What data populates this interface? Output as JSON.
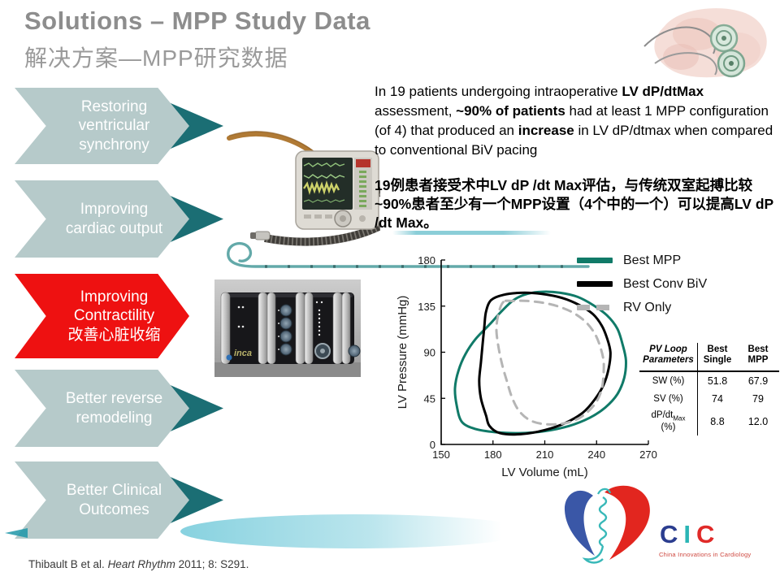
{
  "slide": {
    "title_en": "Solutions – MPP Study Data",
    "title_zh": "解决方案—MPP研究数据"
  },
  "pathway": {
    "colors": {
      "normal": "#b6caca",
      "highlight": "#ee1111",
      "tip": "#1b6e74",
      "text": "#ffffff"
    },
    "steps": [
      {
        "lines": [
          "Restoring",
          "ventricular",
          "synchrony"
        ],
        "highlighted": false
      },
      {
        "lines": [
          "Improving",
          "cardiac output"
        ],
        "highlighted": false
      },
      {
        "lines": [
          "Improving",
          "Contractility",
          "改善心脏收缩"
        ],
        "highlighted": true
      },
      {
        "lines": [
          "Better reverse",
          "remodeling"
        ],
        "highlighted": false
      },
      {
        "lines": [
          "Better Clinical",
          "Outcomes"
        ],
        "highlighted": false
      }
    ]
  },
  "study_text": {
    "en_segments": [
      {
        "text": "In 19 patients undergoing intraoperative ",
        "bold": false
      },
      {
        "text": "LV dP/dtMax",
        "bold": true
      },
      {
        "text": " assessment, ",
        "bold": false
      },
      {
        "text": "~90% of patients",
        "bold": true
      },
      {
        "text": " had at least 1 MPP configuration (of 4) that produced an ",
        "bold": false
      },
      {
        "text": "increase",
        "bold": true
      },
      {
        "text": " in LV dP/dtmax when compared to conventional BiV pacing",
        "bold": false
      }
    ],
    "zh": "19例患者接受术中LV dP /dt Max评估，与传统双室起搏比较~90%患者至少有一个MPP设置（4个中的一个）可以提高LV dP /dt Max。"
  },
  "chart_data": {
    "type": "line",
    "subtype": "pv-loop",
    "title": "",
    "xlabel": "LV Volume (mL)",
    "ylabel": "LV Pressure (mmHg)",
    "xlim": [
      150,
      270
    ],
    "ylim": [
      0,
      180
    ],
    "xticks": [
      150,
      180,
      210,
      240,
      270
    ],
    "yticks": [
      0,
      45,
      90,
      135,
      180
    ],
    "grid": false,
    "legend_position": "upper-right-outside",
    "series": [
      {
        "name": "Best MPP",
        "color": "#107a68",
        "style": "solid",
        "width": 3,
        "points": [
          [
            162,
            22
          ],
          [
            159,
            38
          ],
          [
            158,
            55
          ],
          [
            160,
            72
          ],
          [
            164,
            88
          ],
          [
            170,
            103
          ],
          [
            178,
            117
          ],
          [
            185,
            130
          ],
          [
            192,
            141
          ],
          [
            200,
            147
          ],
          [
            209,
            149
          ],
          [
            219,
            148
          ],
          [
            229,
            144
          ],
          [
            238,
            136
          ],
          [
            246,
            126
          ],
          [
            252,
            113
          ],
          [
            255,
            98
          ],
          [
            257,
            82
          ],
          [
            256,
            65
          ],
          [
            252,
            49
          ],
          [
            245,
            36
          ],
          [
            236,
            26
          ],
          [
            224,
            18
          ],
          [
            210,
            13
          ],
          [
            195,
            11
          ],
          [
            181,
            12
          ],
          [
            170,
            15
          ]
        ]
      },
      {
        "name": "Best Conv BiV",
        "color": "#000000",
        "style": "solid",
        "width": 3,
        "points": [
          [
            176,
            28
          ],
          [
            173,
            45
          ],
          [
            172,
            62
          ],
          [
            173,
            80
          ],
          [
            174,
            98
          ],
          [
            175,
            115
          ],
          [
            176,
            130
          ],
          [
            179,
            141
          ],
          [
            186,
            146
          ],
          [
            196,
            148
          ],
          [
            208,
            147
          ],
          [
            220,
            143
          ],
          [
            230,
            136
          ],
          [
            238,
            127
          ],
          [
            243,
            116
          ],
          [
            246,
            104
          ],
          [
            248,
            90
          ],
          [
            247,
            74
          ],
          [
            244,
            58
          ],
          [
            239,
            44
          ],
          [
            232,
            31
          ],
          [
            222,
            21
          ],
          [
            210,
            14
          ],
          [
            196,
            10
          ],
          [
            184,
            11
          ],
          [
            178,
            18
          ]
        ]
      },
      {
        "name": "RV Only",
        "color": "#b5b5b5",
        "style": "dashed",
        "width": 3,
        "points": [
          [
            186,
            139
          ],
          [
            183,
            126
          ],
          [
            182,
            112
          ],
          [
            183,
            97
          ],
          [
            185,
            80
          ],
          [
            188,
            62
          ],
          [
            191,
            46
          ],
          [
            195,
            33
          ],
          [
            201,
            24
          ],
          [
            209,
            20
          ],
          [
            219,
            20
          ],
          [
            228,
            24
          ],
          [
            235,
            32
          ],
          [
            240,
            42
          ],
          [
            243,
            54
          ],
          [
            244,
            68
          ],
          [
            244,
            82
          ],
          [
            242,
            96
          ],
          [
            239,
            108
          ],
          [
            234,
            119
          ],
          [
            227,
            128
          ],
          [
            219,
            134
          ],
          [
            210,
            138
          ],
          [
            200,
            140
          ],
          [
            192,
            140
          ]
        ]
      }
    ]
  },
  "pv_table": {
    "headers": [
      "PV Loop\nParameters",
      "Best\nSingle",
      "Best\nMPP"
    ],
    "rows": [
      {
        "param": "SW (%)",
        "sub": "",
        "param2": "",
        "best_single": "51.8",
        "best_mpp": "67.9"
      },
      {
        "param": "SV (%)",
        "sub": "",
        "param2": "",
        "best_single": "74",
        "best_mpp": "79"
      },
      {
        "param": "dP/dt",
        "sub": "Max",
        "param2": "(%)",
        "best_single": "8.8",
        "best_mpp": "12.0"
      }
    ]
  },
  "footer": {
    "citation_prefix": "Thibault B et al. ",
    "citation_journal": "Heart Rhythm",
    "citation_suffix": " 2011; 8: S291."
  },
  "logo": {
    "letters": [
      {
        "ch": "C",
        "color": "#2b3d8f"
      },
      {
        "ch": "I",
        "color": "#2ab5b5"
      },
      {
        "ch": "C",
        "color": "#e02a28"
      }
    ],
    "tagline": "China Innovations in Cardiology"
  },
  "images": {
    "inca_label": "inca"
  }
}
